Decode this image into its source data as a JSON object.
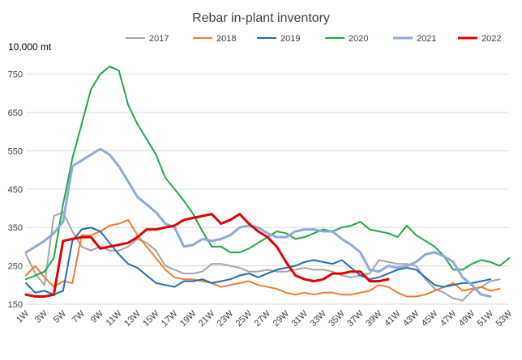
{
  "chart_data": {
    "type": "line",
    "title": "Rebar in-plant inventory",
    "ylabel": "10,000 mt",
    "xlabel": "",
    "ylim": [
      150,
      800
    ],
    "yticks": [
      150,
      250,
      350,
      450,
      550,
      650,
      750
    ],
    "grid": "horizontal",
    "legend_position": "top",
    "x": [
      "1W",
      "2W",
      "3W",
      "4W",
      "5W",
      "6W",
      "7W",
      "8W",
      "9W",
      "10W",
      "11W",
      "12W",
      "13W",
      "14W",
      "15W",
      "16W",
      "17W",
      "18W",
      "19W",
      "20W",
      "21W",
      "22W",
      "23W",
      "24W",
      "25W",
      "26W",
      "27W",
      "28W",
      "29W",
      "30W",
      "31W",
      "32W",
      "33W",
      "34W",
      "35W",
      "36W",
      "37W",
      "38W",
      "39W",
      "40W",
      "41W",
      "42W",
      "43W",
      "44W",
      "45W",
      "46W",
      "47W",
      "48W",
      "49W",
      "50W",
      "51W",
      "52W",
      "53W"
    ],
    "xtick_labels": [
      "1W",
      "3W",
      "5W",
      "7W",
      "9W",
      "11W",
      "13W",
      "15W",
      "17W",
      "19W",
      "21W",
      "23W",
      "25W",
      "27W",
      "29W",
      "31W",
      "33W",
      "35W",
      "37W",
      "39W",
      "41W",
      "43W",
      "45W",
      "47W",
      "49W",
      "51W",
      "53W"
    ],
    "series": [
      {
        "name": "2017",
        "color": "#a5a5a5",
        "width": 2,
        "values": [
          280,
          230,
          200,
          380,
          390,
          340,
          300,
          290,
          300,
          290,
          290,
          300,
          320,
          310,
          290,
          250,
          240,
          230,
          230,
          235,
          255,
          255,
          250,
          245,
          235,
          235,
          240,
          235,
          235,
          240,
          245,
          240,
          240,
          235,
          225,
          220,
          225,
          230,
          265,
          260,
          255,
          255,
          250,
          215,
          190,
          180,
          165,
          160,
          185,
          195,
          210,
          215,
          null
        ]
      },
      {
        "name": "2018",
        "color": "#ed7d31",
        "width": 2,
        "values": [
          225,
          250,
          220,
          195,
          210,
          205,
          330,
          330,
          340,
          355,
          360,
          370,
          330,
          300,
          270,
          240,
          220,
          215,
          215,
          210,
          205,
          195,
          200,
          205,
          210,
          200,
          195,
          190,
          180,
          175,
          180,
          175,
          180,
          180,
          175,
          175,
          180,
          185,
          200,
          195,
          180,
          170,
          170,
          175,
          185,
          195,
          205,
          185,
          190,
          195,
          185,
          190,
          null
        ]
      },
      {
        "name": "2019",
        "color": "#1f6cb4",
        "width": 2,
        "values": [
          205,
          180,
          185,
          175,
          185,
          315,
          345,
          350,
          340,
          310,
          280,
          255,
          245,
          225,
          205,
          200,
          195,
          210,
          210,
          215,
          205,
          210,
          215,
          225,
          230,
          220,
          230,
          240,
          245,
          250,
          260,
          265,
          260,
          255,
          265,
          245,
          225,
          215,
          220,
          230,
          240,
          245,
          240,
          220,
          200,
          195,
          200,
          205,
          205,
          210,
          215,
          null,
          null
        ]
      },
      {
        "name": "2020",
        "color": "#22a846",
        "width": 2,
        "values": [
          215,
          225,
          235,
          270,
          410,
          530,
          620,
          710,
          750,
          770,
          760,
          670,
          620,
          580,
          540,
          480,
          450,
          420,
          385,
          340,
          300,
          300,
          285,
          285,
          295,
          310,
          325,
          340,
          335,
          320,
          325,
          335,
          345,
          340,
          350,
          355,
          365,
          345,
          340,
          335,
          325,
          355,
          330,
          315,
          300,
          275,
          240,
          240,
          255,
          265,
          260,
          250,
          270
        ]
      },
      {
        "name": "2021",
        "color": "#8eaadb",
        "width": 3,
        "values": [
          285,
          300,
          315,
          335,
          365,
          510,
          525,
          540,
          555,
          540,
          510,
          470,
          430,
          410,
          390,
          360,
          350,
          300,
          305,
          320,
          315,
          320,
          330,
          350,
          355,
          350,
          335,
          325,
          325,
          340,
          345,
          345,
          340,
          340,
          320,
          305,
          285,
          240,
          235,
          250,
          245,
          250,
          260,
          280,
          285,
          275,
          260,
          220,
          200,
          175,
          170,
          null,
          null
        ]
      },
      {
        "name": "2022",
        "color": "#e00000",
        "width": 3,
        "values": [
          175,
          170,
          170,
          175,
          315,
          320,
          325,
          325,
          295,
          300,
          305,
          310,
          325,
          345,
          345,
          350,
          355,
          370,
          375,
          380,
          385,
          360,
          370,
          385,
          360,
          340,
          325,
          300,
          260,
          225,
          215,
          210,
          215,
          230,
          230,
          235,
          235,
          210,
          210,
          215,
          null,
          null,
          null,
          null,
          null,
          null,
          null,
          null,
          null,
          null,
          null,
          null,
          null
        ]
      }
    ]
  }
}
